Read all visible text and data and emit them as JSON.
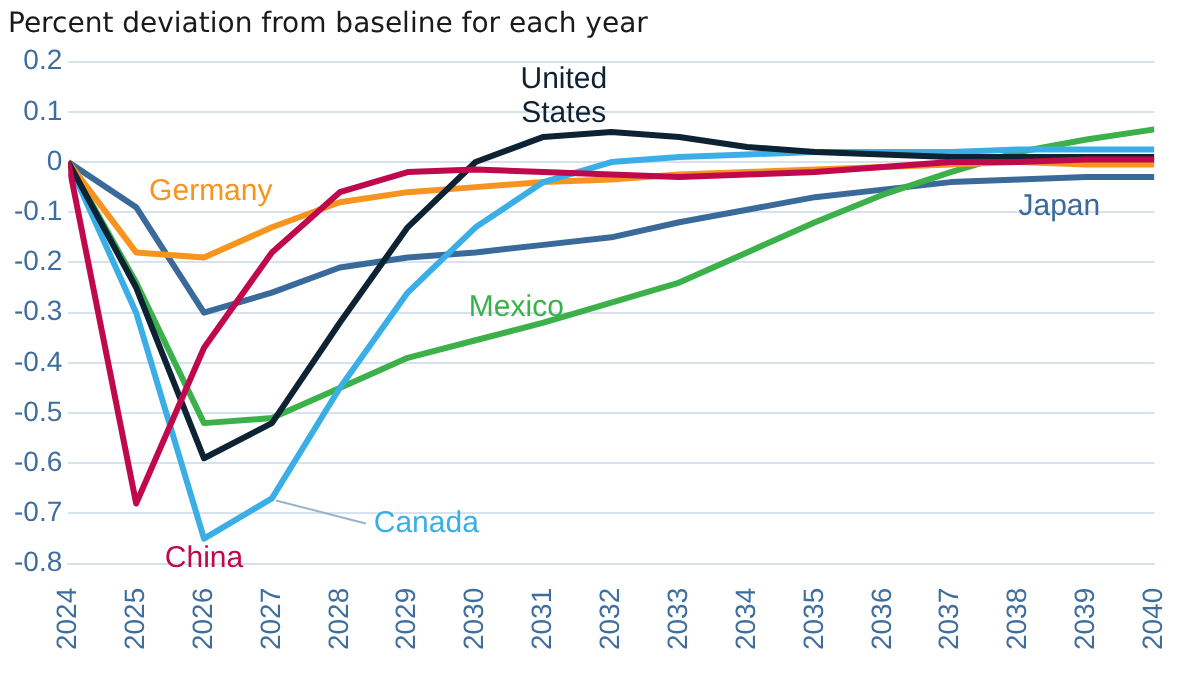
{
  "chart_data": {
    "type": "line",
    "title": "Percent deviation from baseline for each year",
    "x": [
      2024,
      2025,
      2026,
      2027,
      2028,
      2029,
      2030,
      2031,
      2032,
      2033,
      2034,
      2035,
      2036,
      2037,
      2038,
      2039,
      2040
    ],
    "xlim": [
      2024,
      2040
    ],
    "xticks": [
      2024,
      2025,
      2026,
      2027,
      2028,
      2029,
      2030,
      2031,
      2032,
      2033,
      2034,
      2035,
      2036,
      2037,
      2038,
      2039,
      2040
    ],
    "ylim": [
      -0.8,
      0.2
    ],
    "yticks": [
      -0.8,
      -0.7,
      -0.6,
      -0.5,
      -0.4,
      -0.3,
      -0.2,
      -0.1,
      0,
      0.1,
      0.2
    ],
    "grid": "y",
    "legend": false,
    "marker": "none",
    "line_style": "solid",
    "series": [
      {
        "name": "Japan",
        "color": "#3a6a99",
        "values": [
          0,
          -0.09,
          -0.3,
          -0.26,
          -0.21,
          -0.19,
          -0.18,
          -0.165,
          -0.15,
          -0.12,
          -0.095,
          -0.07,
          -0.055,
          -0.04,
          -0.035,
          -0.03,
          -0.03
        ]
      },
      {
        "name": "Mexico",
        "color": "#3cb14a",
        "values": [
          0,
          -0.24,
          -0.52,
          -0.51,
          -0.45,
          -0.39,
          -0.355,
          -0.32,
          -0.28,
          -0.24,
          -0.18,
          -0.12,
          -0.065,
          -0.02,
          0.02,
          0.045,
          0.065
        ]
      },
      {
        "name": "Germany",
        "color": "#f7941d",
        "values": [
          0,
          -0.18,
          -0.19,
          -0.13,
          -0.08,
          -0.06,
          -0.05,
          -0.04,
          -0.035,
          -0.025,
          -0.02,
          -0.015,
          -0.01,
          -0.005,
          0,
          -0.005,
          -0.005
        ]
      },
      {
        "name": "Canada",
        "color": "#3aaee6",
        "values": [
          0,
          -0.3,
          -0.75,
          -0.67,
          -0.45,
          -0.26,
          -0.13,
          -0.04,
          0,
          0.01,
          0.015,
          0.02,
          0.02,
          0.02,
          0.025,
          0.025,
          0.025
        ]
      },
      {
        "name": "United States",
        "color": "#0d2233",
        "values": [
          0,
          -0.25,
          -0.59,
          -0.52,
          -0.32,
          -0.13,
          0,
          0.05,
          0.06,
          0.05,
          0.03,
          0.02,
          0.015,
          0.01,
          0.01,
          0.01,
          0.01
        ]
      },
      {
        "name": "China",
        "color": "#c0084d",
        "values": [
          0,
          -0.68,
          -0.37,
          -0.18,
          -0.06,
          -0.02,
          -0.015,
          -0.02,
          -0.025,
          -0.03,
          -0.025,
          -0.02,
          -0.01,
          0,
          0,
          0.005,
          0.005
        ]
      }
    ]
  }
}
